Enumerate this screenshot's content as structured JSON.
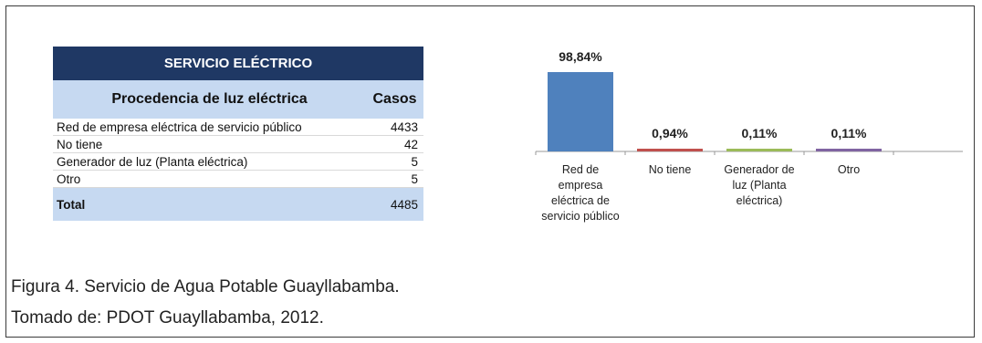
{
  "table": {
    "title": "SERVICIO ELÉCTRICO",
    "col_headers": [
      "Procedencia de luz eléctrica",
      "Casos"
    ],
    "rows": [
      {
        "label": "Red de empresa eléctrica de servicio público",
        "value": "4433"
      },
      {
        "label": "No tiene",
        "value": "42"
      },
      {
        "label": "Generador de luz (Planta eléctrica)",
        "value": "5"
      },
      {
        "label": "Otro",
        "value": "5"
      }
    ],
    "total": {
      "label": "Total",
      "value": "4485"
    }
  },
  "chart_data": {
    "type": "bar",
    "categories": [
      [
        "Red de",
        "empresa",
        "eléctrica de",
        "servicio público"
      ],
      [
        "No tiene"
      ],
      [
        "Generador de",
        "luz (Planta",
        "eléctrica)"
      ],
      [
        "Otro"
      ]
    ],
    "values": [
      98.84,
      0.94,
      0.11,
      0.11
    ],
    "value_labels": [
      "98,84%",
      "0,94%",
      "0,11%",
      "0,11%"
    ],
    "colors": [
      "#4f81bd",
      "#c0504d",
      "#9bbb59",
      "#8064a2"
    ],
    "ylim": [
      0,
      100
    ],
    "title": "",
    "xlabel": "",
    "ylabel": ""
  },
  "caption": {
    "line1": "Figura 4. Servicio de Agua Potable Guayllabamba.",
    "line2": "Tomado de: PDOT Guayllabamba, 2012."
  }
}
